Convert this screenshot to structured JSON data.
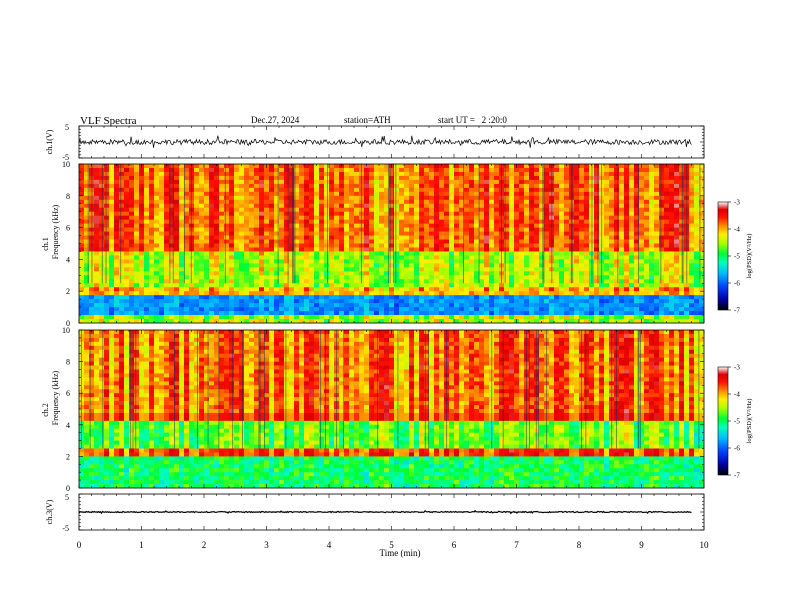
{
  "header": {
    "title": "VLF Spectra",
    "date": "Dec.27, 2024",
    "station": "station=ATH",
    "start": "start UT =   2 :20:0"
  },
  "colors": {
    "palette": [
      "#000000",
      "#0000aa",
      "#0044ff",
      "#00aaff",
      "#00ffcc",
      "#00ff44",
      "#88ff00",
      "#ffff00",
      "#ff9900",
      "#ff2200",
      "#cc0000",
      "#ffffff"
    ]
  },
  "chart_data": [
    {
      "type": "line",
      "ylabel": "ch.1(V)",
      "ylim": [
        -5,
        5
      ],
      "yticks": [
        "5",
        "-5"
      ],
      "xlim": [
        0,
        10
      ],
      "note_values": "noise waveform, amplitude approx ±1.5 V around 0"
    },
    {
      "type": "heatmap",
      "ylabel": "ch.1\nFrequency (kHz)",
      "ylabel_lines": [
        "ch.1",
        "Frequency (kHz)"
      ],
      "ylim": [
        0,
        10
      ],
      "yticks": [
        "0",
        "2",
        "4",
        "6",
        "8",
        "10"
      ],
      "xlim": [
        0,
        10
      ],
      "colorbar": {
        "label": "log(PSD)(V²/Hz)",
        "ticks": [
          "-3",
          "-4",
          "-5",
          "-6",
          "-7"
        ],
        "range": [
          -7,
          -3
        ]
      }
    },
    {
      "type": "heatmap",
      "ylabel": "ch.2\nFrequency (kHz)",
      "ylabel_lines": [
        "ch.2",
        "Frequency (kHz)"
      ],
      "ylim": [
        0,
        10
      ],
      "yticks": [
        "0",
        "2",
        "4",
        "6",
        "8",
        "10"
      ],
      "xlim": [
        0,
        10
      ],
      "colorbar": {
        "label": "log(PSD)(V²/Hz)",
        "ticks": [
          "-3",
          "-4",
          "-5",
          "-6",
          "-7"
        ],
        "range": [
          -7,
          -3
        ]
      }
    },
    {
      "type": "line",
      "ylabel": "ch.3(V)",
      "ylim": [
        -5,
        5
      ],
      "yticks": [
        "5",
        "-5"
      ],
      "xlim": [
        0,
        10
      ],
      "xlabel": "Time (min)",
      "xticks": [
        "0",
        "1",
        "2",
        "3",
        "4",
        "5",
        "6",
        "7",
        "8",
        "9",
        "10"
      ]
    }
  ]
}
